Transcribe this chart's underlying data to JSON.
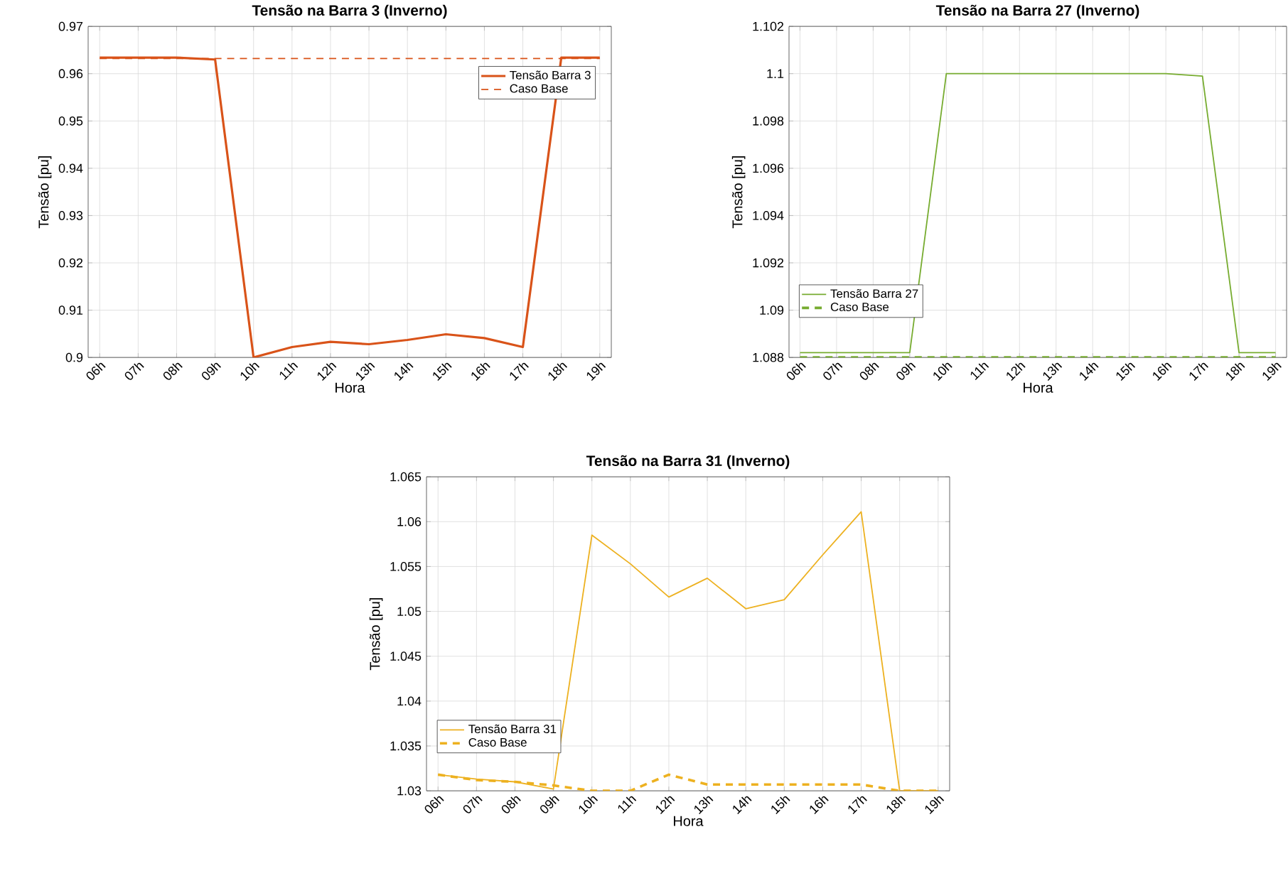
{
  "chart_data": [
    {
      "type": "line",
      "title": "Tensão na Barra 3 (Inverno)",
      "xlabel": "Hora",
      "ylabel": "Tensão [pu]",
      "categories": [
        "06h",
        "07h",
        "08h",
        "09h",
        "10h",
        "11h",
        "12h",
        "13h",
        "14h",
        "15h",
        "16h",
        "17h",
        "18h",
        "19h"
      ],
      "ylim": [
        0.9,
        0.97
      ],
      "yticks": [
        0.9,
        0.91,
        0.92,
        0.93,
        0.94,
        0.95,
        0.96,
        0.97
      ],
      "grid": true,
      "legend": "top right",
      "series": [
        {
          "name": "Tensão Barra 3",
          "color": "#d95319",
          "line_style": "solid",
          "values": [
            0.9634,
            0.9634,
            0.9634,
            0.963,
            0.9,
            0.9022,
            0.9033,
            0.9028,
            0.9037,
            0.9049,
            0.9041,
            0.9022,
            0.9634,
            0.9634
          ]
        },
        {
          "name": "Caso Base",
          "color": "#d95319",
          "line_style": "dashed",
          "values": [
            0.9632,
            0.9632,
            0.9632,
            0.9632,
            0.9632,
            0.9632,
            0.9632,
            0.9632,
            0.9632,
            0.9632,
            0.9632,
            0.9632,
            0.9632,
            0.9632
          ]
        }
      ]
    },
    {
      "type": "line",
      "title": "Tensão na Barra 27 (Inverno)",
      "xlabel": "Hora",
      "ylabel": "Tensão [pu]",
      "categories": [
        "06h",
        "07h",
        "08h",
        "09h",
        "10h",
        "11h",
        "12h",
        "13h",
        "14h",
        "15h",
        "16h",
        "17h",
        "18h",
        "19h"
      ],
      "ylim": [
        1.088,
        1.102
      ],
      "yticks": [
        1.088,
        1.09,
        1.092,
        1.094,
        1.096,
        1.098,
        1.1,
        1.102
      ],
      "grid": true,
      "legend": "bottom left",
      "series": [
        {
          "name": "Tensão Barra 27",
          "color": "#77ac30",
          "line_style": "solid",
          "values": [
            1.0882,
            1.0882,
            1.0882,
            1.0882,
            1.1,
            1.1,
            1.1,
            1.1,
            1.1,
            1.1,
            1.1,
            1.0999,
            1.0882,
            1.0882
          ]
        },
        {
          "name": "Caso Base",
          "color": "#77ac30",
          "line_style": "dashed",
          "values": [
            1.088,
            1.088,
            1.088,
            1.088,
            1.088,
            1.088,
            1.088,
            1.088,
            1.088,
            1.088,
            1.088,
            1.088,
            1.088,
            1.088
          ]
        }
      ]
    },
    {
      "type": "line",
      "title": "Tensão na Barra 31 (Inverno)",
      "xlabel": "Hora",
      "ylabel": "Tensão [pu]",
      "categories": [
        "06h",
        "07h",
        "08h",
        "09h",
        "10h",
        "11h",
        "12h",
        "13h",
        "14h",
        "15h",
        "16h",
        "17h",
        "18h",
        "19h"
      ],
      "ylim": [
        1.03,
        1.065
      ],
      "yticks": [
        1.03,
        1.035,
        1.04,
        1.045,
        1.05,
        1.055,
        1.06,
        1.065
      ],
      "grid": true,
      "legend": "bottom left",
      "series": [
        {
          "name": "Tensão Barra 31",
          "color": "#edb120",
          "line_style": "solid",
          "values": [
            1.0318,
            1.0313,
            1.031,
            1.0302,
            1.0585,
            1.0553,
            1.0516,
            1.0537,
            1.0503,
            1.0513,
            1.0563,
            1.0611,
            1.03,
            1.03
          ]
        },
        {
          "name": "Caso Base",
          "color": "#edb120",
          "line_style": "dashed",
          "values": [
            1.0318,
            1.0312,
            1.031,
            1.0306,
            1.03,
            1.03,
            1.0318,
            1.0307,
            1.0307,
            1.0307,
            1.0307,
            1.0307,
            1.03,
            1.03
          ]
        }
      ]
    }
  ]
}
